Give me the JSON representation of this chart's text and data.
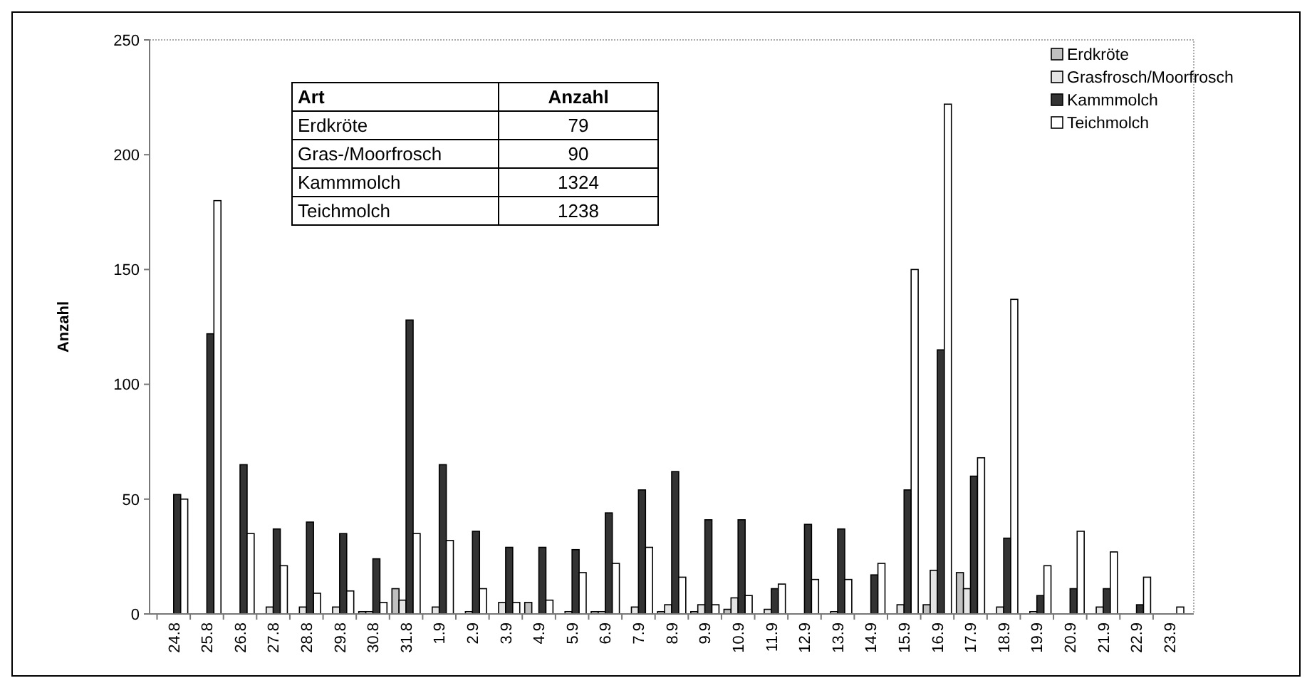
{
  "chart_data": {
    "type": "bar",
    "ylabel": "Anzahl",
    "categories": [
      "24.8",
      "25.8",
      "26.8",
      "27.8",
      "28.8",
      "29.8",
      "30.8",
      "31.8",
      "1.9",
      "2.9",
      "3.9",
      "4.9",
      "5.9",
      "6.9",
      "7.9",
      "8.9",
      "9.9",
      "10.9",
      "11.9",
      "12.9",
      "13.9",
      "14.9",
      "15.9",
      "16.9",
      "17.9",
      "18.9",
      "19.9",
      "20.9",
      "21.9",
      "22.9",
      "23.9"
    ],
    "series": [
      {
        "name": "Erdkröte",
        "color": "#c0c0c0",
        "values": [
          null,
          null,
          null,
          null,
          null,
          null,
          1,
          11,
          null,
          null,
          null,
          5,
          null,
          1,
          null,
          1,
          1,
          2,
          null,
          null,
          null,
          null,
          null,
          4,
          18,
          null,
          null,
          null,
          null,
          null,
          null
        ]
      },
      {
        "name": "Grasfrosch/Moorfrosch",
        "color": "#e4e4e4",
        "values": [
          null,
          null,
          null,
          3,
          3,
          3,
          1,
          6,
          3,
          1,
          5,
          null,
          1,
          1,
          3,
          4,
          4,
          7,
          2,
          null,
          1,
          null,
          4,
          19,
          11,
          3,
          1,
          null,
          3,
          null,
          null
        ]
      },
      {
        "name": "Kammmolch",
        "color": "#333333",
        "values": [
          52,
          122,
          65,
          37,
          40,
          35,
          24,
          128,
          65,
          36,
          29,
          29,
          28,
          44,
          54,
          62,
          41,
          41,
          11,
          39,
          37,
          17,
          54,
          115,
          60,
          33,
          8,
          11,
          11,
          4,
          null
        ]
      },
      {
        "name": "Teichmolch",
        "color": "#ffffff",
        "values": [
          50,
          180,
          35,
          21,
          9,
          10,
          5,
          35,
          32,
          11,
          5,
          6,
          18,
          22,
          29,
          16,
          4,
          8,
          13,
          15,
          15,
          22,
          150,
          222,
          68,
          137,
          21,
          36,
          27,
          16,
          3
        ]
      }
    ],
    "ylim": [
      0,
      250
    ],
    "yticks": [
      0,
      50,
      100,
      150,
      200,
      250
    ],
    "grid": false,
    "legend": "top right",
    "annotations": [
      "Art",
      "Anzahl",
      "Erdkröte",
      "79",
      "Gras-/Moorfrosch",
      "90",
      "Kammmolch",
      "1324",
      "Teichmolch",
      "1238"
    ]
  }
}
